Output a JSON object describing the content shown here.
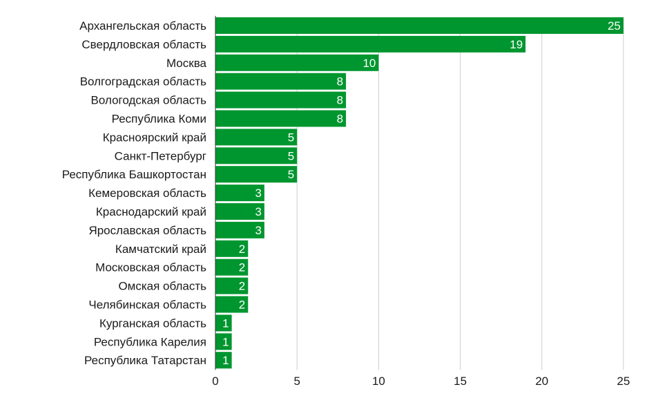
{
  "chart_data": {
    "type": "bar",
    "orientation": "horizontal",
    "categories": [
      "Архангельская область",
      "Свердловская область",
      "Москва",
      "Волгоградская область",
      "Вологодская область",
      "Республика Коми",
      "Красноярский край",
      "Санкт-Петербург",
      "Республика Башкортостан",
      "Кемеровская область",
      "Краснодарский край",
      "Ярославская область",
      "Камчатский край",
      "Московская область",
      "Омская область",
      "Челябинская область",
      "Курганская область",
      "Республика Карелия",
      "Республика Татарстан"
    ],
    "values": [
      25,
      19,
      10,
      8,
      8,
      8,
      5,
      5,
      5,
      3,
      3,
      3,
      2,
      2,
      2,
      2,
      1,
      1,
      1
    ],
    "xlim": [
      0,
      25
    ],
    "x_ticks": [
      0,
      5,
      10,
      15,
      20,
      25
    ],
    "grid": true,
    "bar_color": "#00962f",
    "data_labels": true,
    "title": "",
    "xlabel": "",
    "ylabel": ""
  }
}
